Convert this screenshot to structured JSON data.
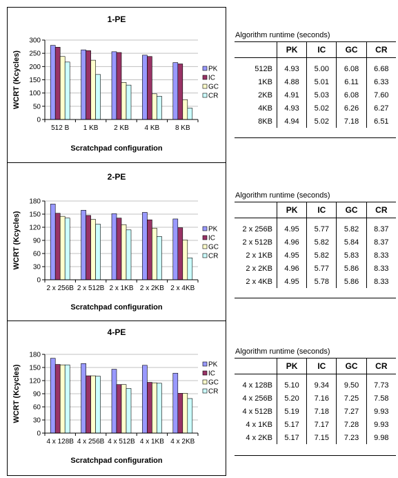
{
  "colors": {
    "PK": "#9999ff",
    "IC": "#993366",
    "GC": "#ffffcc",
    "CR": "#ccffff"
  },
  "charts": [
    {
      "title": "1-PE",
      "ylabel": "WCRT (Kcycles)",
      "xlabel": "Scratchpad configuration",
      "legend": [
        "PK",
        "IC",
        "GC",
        "CR"
      ]
    },
    {
      "title": "2-PE",
      "ylabel": "WCRT (Kcycles)",
      "xlabel": "Scratchpad configuration",
      "legend": [
        "PK",
        "IC",
        "GC",
        "CR"
      ]
    },
    {
      "title": "4-PE",
      "ylabel": "WCRT (Kcycles)",
      "xlabel": "Scratchpad configuration",
      "legend": [
        "PK",
        "IC",
        "GC",
        "CR"
      ]
    }
  ],
  "chart_data": [
    {
      "type": "bar",
      "title": "1-PE",
      "xlabel": "Scratchpad configuration",
      "ylabel": "WCRT (Kcycles)",
      "categories": [
        "512 B",
        "1 KB",
        "2 KB",
        "4 KB",
        "8 KB"
      ],
      "ylim": [
        0,
        300
      ],
      "yticks": [
        0,
        50,
        100,
        150,
        200,
        250,
        300
      ],
      "legend_position": "right",
      "series": [
        {
          "name": "PK",
          "values": [
            280,
            263,
            256,
            243,
            215
          ]
        },
        {
          "name": "IC",
          "values": [
            273,
            260,
            253,
            238,
            210
          ]
        },
        {
          "name": "GC",
          "values": [
            238,
            224,
            140,
            97,
            75
          ]
        },
        {
          "name": "CR",
          "values": [
            217,
            170,
            130,
            88,
            43
          ]
        }
      ]
    },
    {
      "type": "bar",
      "title": "2-PE",
      "xlabel": "Scratchpad configuration",
      "ylabel": "WCRT (Kcycles)",
      "categories": [
        "2 x 256B",
        "2 x 512B",
        "2 x 1KB",
        "2 x 2KB",
        "2 x 4KB"
      ],
      "ylim": [
        0,
        180
      ],
      "yticks": [
        0,
        30,
        60,
        90,
        120,
        150,
        180
      ],
      "legend_position": "right",
      "series": [
        {
          "name": "PK",
          "values": [
            173,
            159,
            151,
            154,
            139
          ]
        },
        {
          "name": "IC",
          "values": [
            152,
            147,
            141,
            137,
            119
          ]
        },
        {
          "name": "GC",
          "values": [
            145,
            138,
            126,
            118,
            91
          ]
        },
        {
          "name": "CR",
          "values": [
            141,
            127,
            114,
            99,
            50
          ]
        }
      ]
    },
    {
      "type": "bar",
      "title": "4-PE",
      "xlabel": "Scratchpad configuration",
      "ylabel": "WCRT (Kcycles)",
      "categories": [
        "4 x 128B",
        "4 x 256B",
        "4 x 512B",
        "4 x 1KB",
        "4 x 2KB"
      ],
      "ylim": [
        0,
        180
      ],
      "yticks": [
        0,
        30,
        60,
        90,
        120,
        150,
        180
      ],
      "legend_position": "right",
      "series": [
        {
          "name": "PK",
          "values": [
            171,
            159,
            146,
            155,
            137
          ]
        },
        {
          "name": "IC",
          "values": [
            157,
            131,
            111,
            116,
            91
          ]
        },
        {
          "name": "GC",
          "values": [
            156,
            131,
            111,
            115,
            91
          ]
        },
        {
          "name": "CR",
          "values": [
            156,
            130,
            102,
            114,
            79
          ]
        }
      ]
    },
    {
      "type": "table",
      "title": "Algorithm runtime (seconds)",
      "columns": [
        "",
        "PK",
        "IC",
        "GC",
        "CR"
      ],
      "rows": [
        [
          "512B",
          "4.93",
          "5.00",
          "6.08",
          "6.68"
        ],
        [
          "1KB",
          "4.88",
          "5.01",
          "6.11",
          "6.33"
        ],
        [
          "2KB",
          "4.91",
          "5.03",
          "6.08",
          "7.60"
        ],
        [
          "4KB",
          "4.93",
          "5.02",
          "6.26",
          "6.27"
        ],
        [
          "8KB",
          "4.94",
          "5.02",
          "7.18",
          "6.51"
        ]
      ]
    },
    {
      "type": "table",
      "title": "Algorithm runtime (seconds)",
      "columns": [
        "",
        "PK",
        "IC",
        "GC",
        "CR"
      ],
      "rows": [
        [
          "2 x 256B",
          "4.95",
          "5.77",
          "5.82",
          "8.37"
        ],
        [
          "2 x 512B",
          "4.96",
          "5.82",
          "5.84",
          "8.37"
        ],
        [
          "2 x 1KB",
          "4.95",
          "5.82",
          "5.83",
          "8.33"
        ],
        [
          "2 x 2KB",
          "4.96",
          "5.77",
          "5.86",
          "8.33"
        ],
        [
          "2 x 4KB",
          "4.95",
          "5.78",
          "5.86",
          "8.33"
        ]
      ]
    },
    {
      "type": "table",
      "title": "Algorithm runtime (seconds)",
      "columns": [
        "",
        "PK",
        "IC",
        "GC",
        "CR"
      ],
      "rows": [
        [
          "4 x 128B",
          "5.10",
          "9.34",
          "9.50",
          "7.73"
        ],
        [
          "4 x 256B",
          "5.20",
          "7.16",
          "7.25",
          "7.58"
        ],
        [
          "4 x 512B",
          "5.19",
          "7.18",
          "7.27",
          "9.93"
        ],
        [
          "4 x 1KB",
          "5.17",
          "7.17",
          "7.28",
          "9.93"
        ],
        [
          "4 x 2KB",
          "5.17",
          "7.15",
          "7.23",
          "9.98"
        ]
      ]
    }
  ]
}
